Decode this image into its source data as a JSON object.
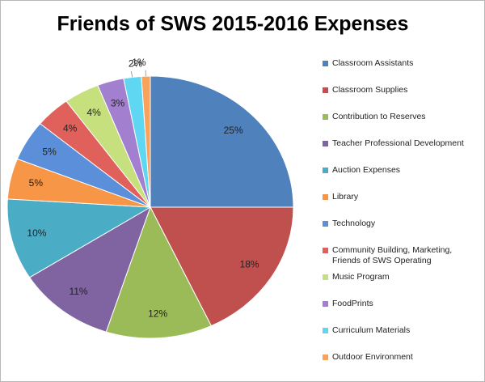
{
  "chart_data": {
    "type": "pie",
    "title": "Friends of SWS 2015-2016 Expenses",
    "categories": [
      "Classroom Assistants",
      "Classroom Supplies",
      "Contribution to Reserves",
      "Teacher Professional Development",
      "Auction Expenses",
      "Library",
      "Technology",
      "Community Building, Marketing, Friends of SWS Operating",
      "Music Program",
      "FoodPrints",
      "Curriculum Materials",
      "Outdoor Environment"
    ],
    "values": [
      25,
      18,
      12,
      11,
      10,
      5,
      5,
      4,
      4,
      3,
      2,
      1
    ],
    "value_labels": [
      "25%",
      "18%",
      "12%",
      "11%",
      "10%",
      "5%",
      "5%",
      "4%",
      "4%",
      "3%",
      "2%",
      "1%"
    ],
    "colors": [
      "#4f81bd",
      "#c0504d",
      "#9bbb59",
      "#8064a2",
      "#4bacc6",
      "#f79646",
      "#5b8fd9",
      "#e0605c",
      "#c5e07c",
      "#a37fd0",
      "#5fd6f2",
      "#f8a25c"
    ],
    "legend": "right"
  }
}
